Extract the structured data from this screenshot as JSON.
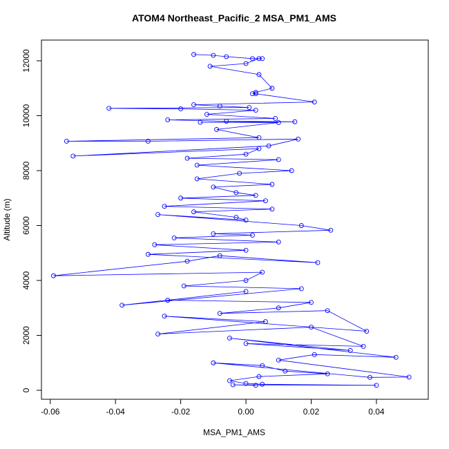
{
  "chart_data": {
    "type": "line",
    "title": "ATOM4 Northeast_Pacific_2 MSA_PM1_AMS",
    "x_label": "MSA_PM1_AMS",
    "y_label": "Altitude (m)",
    "color": "#0000ff",
    "markers": true,
    "xlim": [
      -0.0627,
      0.0559
    ],
    "ylim": [
      -327,
      12755
    ],
    "xticks": [
      -0.06,
      -0.04,
      -0.02,
      {
        "value": 0,
        "label": "0.00"
      },
      0.02,
      0.04
    ],
    "yticks": [
      0,
      2000,
      4000,
      6000,
      8000,
      10000,
      12000
    ],
    "x": [
      -0.016,
      -0.01,
      -0.006,
      0.002,
      0.005,
      0.004,
      0.0,
      -0.011,
      0.004,
      0.008,
      0.003,
      0.002,
      0.003,
      0.021,
      -0.016,
      -0.008,
      0.001,
      -0.042,
      -0.02,
      0.003,
      -0.012,
      0.009,
      -0.024,
      -0.006,
      0.015,
      -0.014,
      0.01,
      -0.009,
      0.004,
      -0.055,
      -0.03,
      0.016,
      0.007,
      -0.053,
      0.004,
      0.0,
      -0.018,
      0.01,
      -0.015,
      0.014,
      -0.002,
      -0.015,
      0.008,
      -0.01,
      -0.003,
      0.003,
      -0.02,
      0.006,
      -0.025,
      0.008,
      -0.016,
      -0.003,
      0.0,
      -0.027,
      0.017,
      0.026,
      -0.01,
      0.002,
      -0.022,
      0.01,
      -0.028,
      0.0,
      -0.03,
      0.022,
      -0.008,
      -0.018,
      -0.059,
      0.005,
      0.0,
      -0.019,
      0.017,
      -0.038,
      0.0,
      -0.024,
      0.02,
      0.01,
      -0.008,
      0.025,
      0.037,
      -0.025,
      0.006,
      -0.027,
      0.02,
      0.036,
      0.0,
      0.032,
      -0.005,
      0.046,
      0.021,
      0.01,
      0.05,
      0.038,
      -0.01,
      0.005,
      0.012,
      0.025,
      0.004,
      -0.005,
      0.0,
      0.005,
      0.04,
      -0.004,
      0.003
    ],
    "values": [
      12230,
      12200,
      12150,
      12080,
      12080,
      12080,
      11900,
      11800,
      11500,
      11000,
      10850,
      10800,
      10800,
      10500,
      10400,
      10350,
      10300,
      10270,
      10250,
      10200,
      10050,
      9900,
      9850,
      9800,
      9780,
      9760,
      9750,
      9500,
      9200,
      9070,
      9070,
      9150,
      8900,
      8530,
      8800,
      8600,
      8450,
      8400,
      8200,
      8000,
      7900,
      7700,
      7500,
      7400,
      7200,
      7100,
      7000,
      6900,
      6700,
      6600,
      6500,
      6300,
      6200,
      6400,
      6000,
      5830,
      5700,
      5650,
      5550,
      5400,
      5300,
      5100,
      4950,
      4650,
      4900,
      4700,
      4170,
      4300,
      4000,
      3800,
      3700,
      3100,
      3600,
      3280,
      3200,
      3000,
      2800,
      2900,
      2150,
      2700,
      2500,
      2050,
      2300,
      1600,
      1700,
      1450,
      1900,
      1200,
      1300,
      1100,
      480,
      470,
      1000,
      900,
      700,
      600,
      500,
      350,
      250,
      220,
      180,
      200,
      180
    ]
  }
}
